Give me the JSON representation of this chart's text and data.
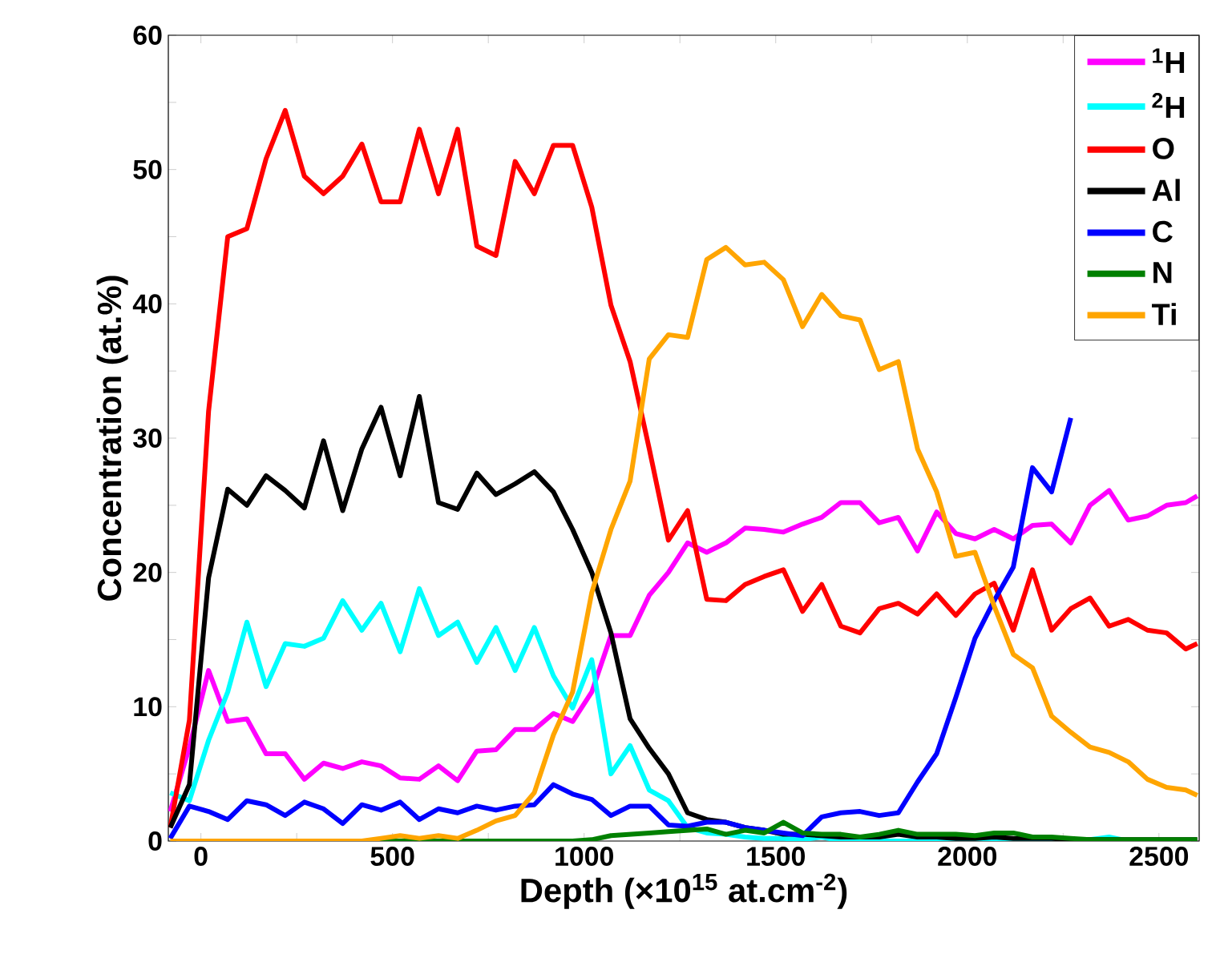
{
  "chart_data": {
    "type": "line",
    "xlabel": "Depth (×10$^{15}$ at.cm$^{-2}$)",
    "ylabel": "Concentration (at.%)",
    "x": [
      -80,
      -30,
      20,
      70,
      120,
      170,
      220,
      270,
      320,
      370,
      420,
      470,
      520,
      570,
      620,
      670,
      720,
      770,
      820,
      870,
      920,
      970,
      1020,
      1070,
      1120,
      1170,
      1220,
      1270,
      1320,
      1370,
      1420,
      1470,
      1520,
      1570,
      1620,
      1670,
      1720,
      1770,
      1820,
      1870,
      1920,
      1970,
      2020,
      2070,
      2120,
      2170,
      2220,
      2270,
      2320,
      2370,
      2420,
      2470,
      2520,
      2570,
      2600
    ],
    "xlim": [
      -85,
      2605
    ],
    "xticks": [
      0,
      {
        "value": 250,
        "label": null
      },
      500,
      {
        "value": 750,
        "label": null
      },
      1000,
      {
        "value": 1250,
        "label": null
      },
      1500,
      {
        "value": 1750,
        "label": null
      },
      2000,
      {
        "value": 2250,
        "label": null
      },
      2500
    ],
    "ylim": [
      0,
      60
    ],
    "yticks": [
      0,
      {
        "value": 5,
        "label": null
      },
      10,
      {
        "value": 15,
        "label": null
      },
      20,
      {
        "value": 25,
        "label": null
      },
      30,
      {
        "value": 35,
        "label": null
      },
      40,
      {
        "value": 45,
        "label": null
      },
      50,
      {
        "value": 55,
        "label": null
      },
      60
    ],
    "grid": false,
    "legend": "top right",
    "marker": "none",
    "line_style": "solid",
    "series": [
      {
        "name": "$^{1}$H",
        "color": "#ff00ff",
        "values": [
          2.2,
          7,
          12.7,
          8.9,
          9.1,
          6.5,
          6.5,
          4.6,
          5.8,
          5.4,
          5.9,
          5.6,
          4.7,
          4.6,
          5.6,
          4.5,
          6.7,
          6.8,
          8.3,
          8.3,
          9.5,
          8.9,
          11.1,
          15.3,
          15.3,
          18.3,
          20,
          22.2,
          21.5,
          22.2,
          23.3,
          23.2,
          23,
          23.6,
          24.1,
          25.2,
          25.2,
          23.7,
          24.1,
          21.6,
          24.5,
          22.9,
          22.5,
          23.2,
          22.5,
          23.5,
          23.6,
          22.2,
          25,
          26.1,
          23.9,
          24.2,
          25,
          25.2,
          25.7
        ]
      },
      {
        "name": "$^{2}$H",
        "color": "#00ffff",
        "values": [
          3.6,
          3,
          7.5,
          11.1,
          16.3,
          11.5,
          14.7,
          14.5,
          15.1,
          17.9,
          15.7,
          17.7,
          14.1,
          18.8,
          15.3,
          16.3,
          13.3,
          15.9,
          12.7,
          15.9,
          12.3,
          9.9,
          13.5,
          5,
          7.1,
          3.8,
          3,
          1,
          0.6,
          0.5,
          0.3,
          0.2,
          0.2,
          0.1,
          0.3,
          0,
          0,
          0,
          0,
          0,
          0,
          0,
          0,
          0,
          0,
          0,
          0,
          0,
          0.1,
          0.3,
          0,
          0,
          null,
          null,
          null
        ]
      },
      {
        "name": "O",
        "color": "#ff0000",
        "values": [
          1,
          9,
          32,
          45,
          45.6,
          50.8,
          54.4,
          49.5,
          48.2,
          49.5,
          51.9,
          47.6,
          47.6,
          53,
          48.2,
          53,
          44.3,
          43.6,
          50.6,
          48.2,
          51.8,
          51.8,
          47.2,
          39.9,
          35.7,
          29.2,
          22.4,
          24.6,
          18,
          17.9,
          19.1,
          19.7,
          20.2,
          17.1,
          19.1,
          16,
          15.5,
          17.3,
          17.7,
          16.9,
          18.4,
          16.8,
          18.4,
          19.2,
          15.7,
          20.2,
          15.7,
          17.3,
          18.1,
          16,
          16.5,
          15.7,
          15.5,
          14.3,
          14.7
        ]
      },
      {
        "name": "Al",
        "color": "#000000",
        "values": [
          1,
          4.2,
          19.6,
          26.2,
          25,
          27.2,
          26.1,
          24.8,
          29.8,
          24.6,
          29.2,
          32.3,
          27.2,
          33.1,
          25.2,
          24.7,
          27.4,
          25.8,
          26.6,
          27.5,
          26,
          23.2,
          20,
          15.5,
          9.1,
          6.9,
          5,
          2.1,
          1.6,
          1.4,
          1,
          0.8,
          0.5,
          0.5,
          0.4,
          0.3,
          0.3,
          0.3,
          0.5,
          0.3,
          0.3,
          0.2,
          0.2,
          0.3,
          0.2,
          0.2,
          0.2,
          0.1,
          0.1,
          0.1,
          0.1,
          0.1,
          0.1,
          0.1,
          0.1
        ]
      },
      {
        "name": "C",
        "color": "#0000ff",
        "values": [
          0.2,
          2.6,
          2.2,
          1.6,
          3,
          2.7,
          1.9,
          2.9,
          2.4,
          1.3,
          2.7,
          2.3,
          2.9,
          1.6,
          2.4,
          2.1,
          2.6,
          2.3,
          2.6,
          2.7,
          4.2,
          3.5,
          3.1,
          1.9,
          2.6,
          2.6,
          1.2,
          1.1,
          1.4,
          1.4,
          1,
          0.8,
          0.6,
          0.4,
          1.8,
          2.1,
          2.2,
          1.9,
          2.1,
          4.4,
          6.5,
          10.7,
          15.1,
          17.9,
          20.4,
          27.8,
          26,
          31.5,
          null,
          null,
          null,
          null,
          null,
          null,
          null
        ]
      },
      {
        "name": "N",
        "color": "#008000",
        "values": [
          null,
          null,
          null,
          null,
          null,
          null,
          null,
          null,
          null,
          null,
          0,
          0,
          0,
          0,
          0,
          0,
          0,
          0,
          0,
          0,
          0,
          0,
          0.1,
          0.4,
          0.5,
          0.6,
          0.7,
          0.8,
          0.9,
          0.5,
          0.8,
          0.6,
          1.4,
          0.6,
          0.5,
          0.5,
          0.3,
          0.5,
          0.8,
          0.5,
          0.5,
          0.5,
          0.4,
          0.6,
          0.6,
          0.3,
          0.3,
          0.2,
          0.1,
          0.1,
          0.1,
          0.1,
          0.1,
          0.1,
          0.1
        ]
      },
      {
        "name": "Ti",
        "color": "#ffa500",
        "values": [
          0,
          0,
          0,
          0,
          0,
          0,
          0,
          0,
          0,
          0,
          0,
          0.2,
          0.4,
          0.2,
          0.4,
          0.2,
          0.8,
          1.5,
          1.9,
          3.6,
          7.9,
          11.1,
          18.5,
          23.2,
          26.8,
          35.9,
          37.7,
          37.5,
          43.3,
          44.2,
          42.9,
          43.1,
          41.8,
          38.3,
          40.7,
          39.1,
          38.8,
          35.1,
          35.7,
          29.2,
          26,
          21.2,
          21.5,
          17.5,
          13.9,
          12.9,
          9.3,
          8.1,
          7,
          6.6,
          5.9,
          4.6,
          4,
          3.8,
          3.4
        ]
      }
    ]
  }
}
